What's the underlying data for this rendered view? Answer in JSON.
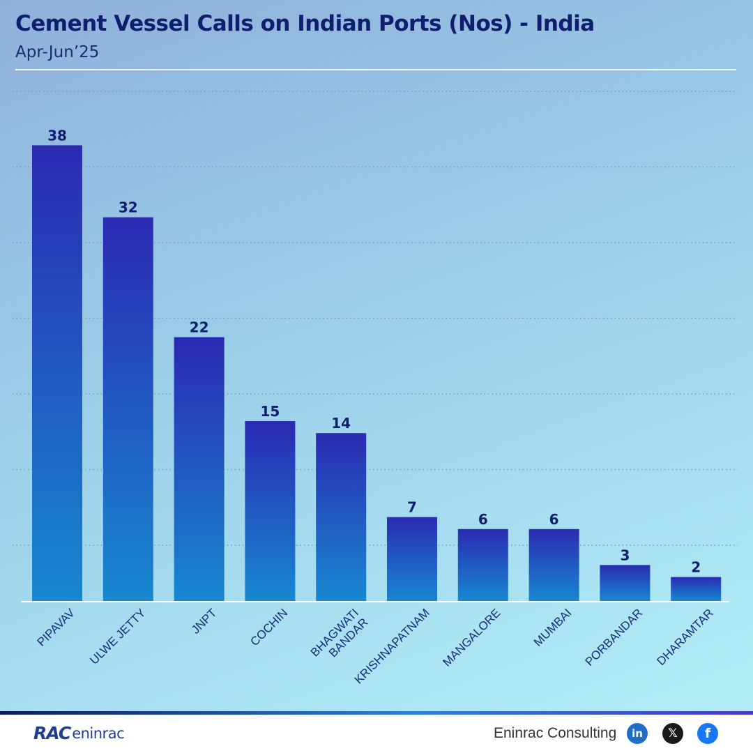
{
  "header": {
    "title": "Cement Vessel Calls on Indian Ports (Nos) - India",
    "subtitle": "Apr-Jun’25"
  },
  "chart_data": {
    "type": "bar",
    "categories": [
      "PIPAVAV",
      "ULWE JETTY",
      "JNPT",
      "COCHIN",
      "BHAGWATI BANDAR",
      "KRISHNAPATNAM",
      "MANGALORE",
      "MUMBAI",
      "PORBANDAR",
      "DHARAMTAR"
    ],
    "category_lines": [
      [
        "PIPAVAV"
      ],
      [
        "ULWE JETTY"
      ],
      [
        "JNPT"
      ],
      [
        "COCHIN"
      ],
      [
        "BHAGWATI",
        "BANDAR"
      ],
      [
        "KRISHNAPATNAM"
      ],
      [
        "MANGALORE"
      ],
      [
        "MUMBAI"
      ],
      [
        "PORBANDAR"
      ],
      [
        "DHARAMTAR"
      ]
    ],
    "values": [
      38,
      32,
      22,
      15,
      14,
      7,
      6,
      6,
      3,
      2
    ],
    "title": "Cement Vessel Calls on Indian Ports (Nos) - India",
    "subtitle": "Apr-Jun’25",
    "xlabel": "",
    "ylabel": "",
    "ylim": [
      0,
      42.5
    ],
    "grid": true,
    "data_labels": true,
    "legend": "none",
    "colors": {
      "bar_top": "#2b2ab3",
      "bar_bottom": "#1788d0",
      "label": "#0f1f6e",
      "grid": "#7c93b5",
      "baseline": "#ffffff"
    }
  },
  "footer": {
    "logo_mark": "RAC",
    "logo_text": "eninrac",
    "company": "Eninrac Consulting",
    "social": [
      {
        "name": "linkedin-icon",
        "glyph": "in"
      },
      {
        "name": "x-icon",
        "glyph": "𝕏"
      },
      {
        "name": "facebook-icon",
        "glyph": "f"
      }
    ]
  }
}
